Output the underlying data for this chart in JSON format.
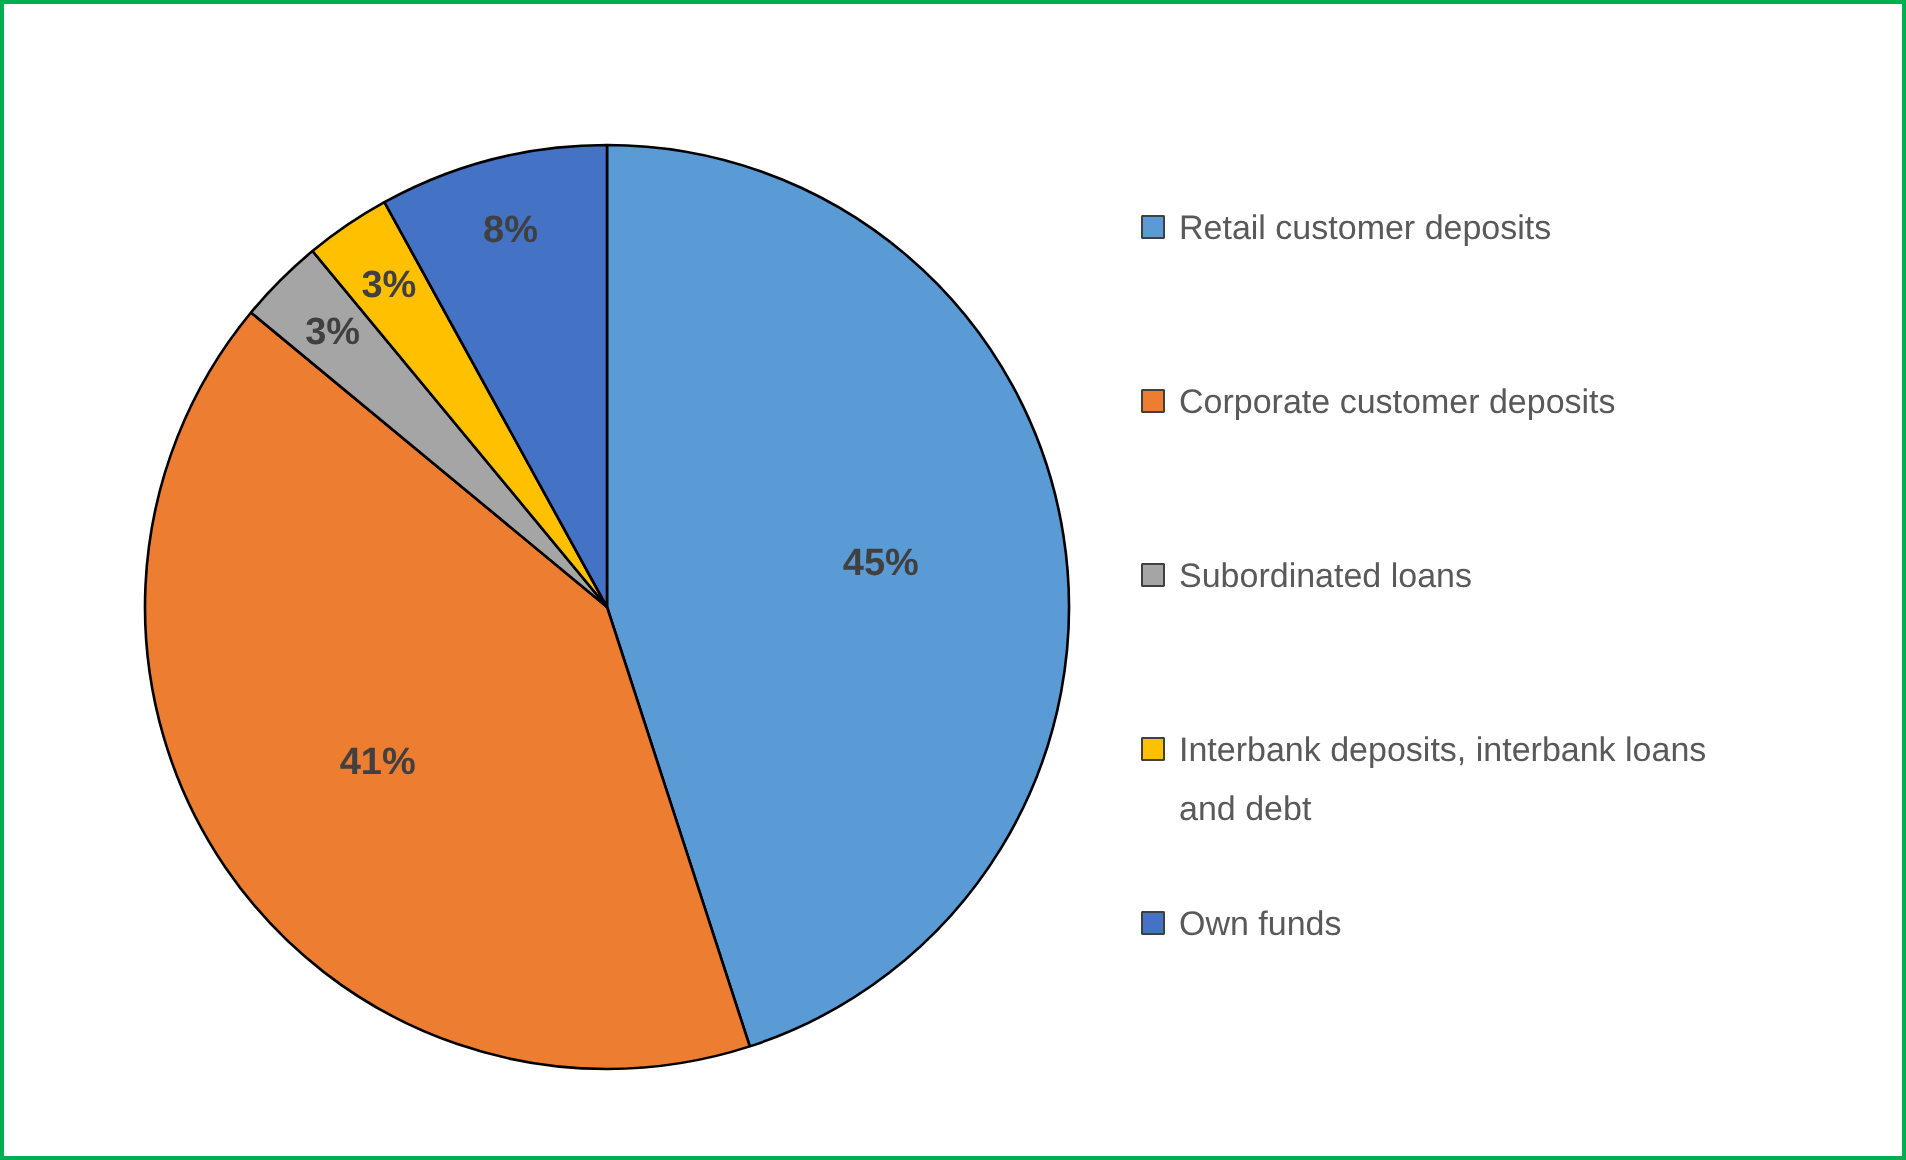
{
  "chart_data": {
    "type": "pie",
    "categories": [
      "Retail customer deposits",
      "Corporate customer deposits",
      "Subordinated loans",
      "Interbank deposits, interbank loans and debt",
      "Own funds"
    ],
    "values": [
      45,
      41,
      3,
      3,
      8
    ],
    "colors": [
      "#5b9bd5",
      "#ed7d31",
      "#a5a5a5",
      "#ffc000",
      "#4472c4"
    ],
    "value_labels": [
      "45%",
      "41%",
      "3%",
      "3%",
      "8%"
    ],
    "legend": "right"
  }
}
